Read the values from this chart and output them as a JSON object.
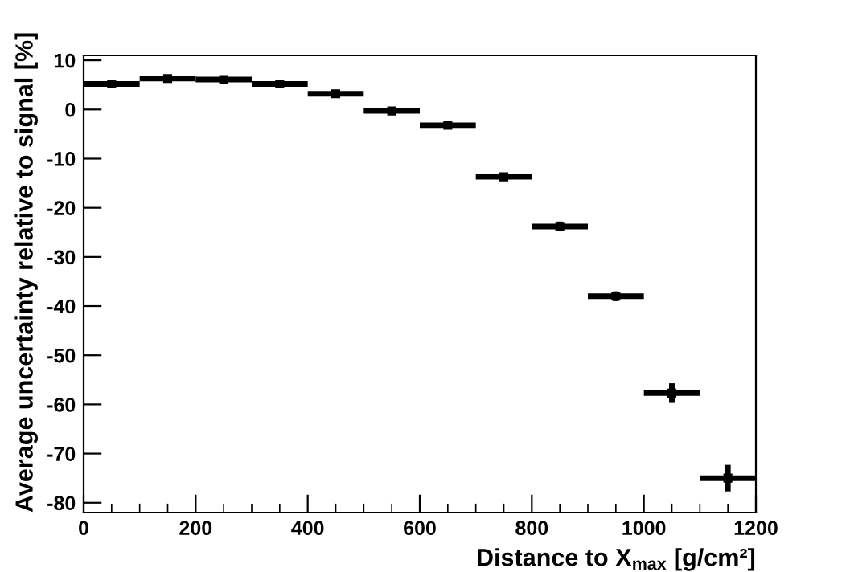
{
  "chart_data": {
    "type": "scatter",
    "xlabel": "Distance to X$_{max}$ [g/cm²]",
    "ylabel": "Average uncertainty relative to signal [%]",
    "x": [
      50,
      150,
      250,
      350,
      450,
      550,
      650,
      750,
      850,
      950,
      1050,
      1150
    ],
    "series": [
      {
        "color": "#000000",
        "values": [
          5.2,
          6.3,
          6.1,
          5.2,
          3.2,
          -0.3,
          -3.2,
          -13.7,
          -23.8,
          -38.0,
          -57.7,
          -75.0
        ],
        "xerrors": [
          50,
          50,
          50,
          50,
          50,
          50,
          50,
          50,
          50,
          50,
          50,
          50
        ],
        "errors": [
          null,
          null,
          null,
          null,
          null,
          null,
          null,
          0.4,
          1.0,
          1.0,
          2.0,
          2.7
        ]
      }
    ],
    "marker": "square",
    "xlim": [
      0,
      1200
    ],
    "ylim": [
      -82,
      11
    ],
    "xticks": [
      0,
      {
        "value": 50,
        "label": null
      },
      {
        "value": 100,
        "label": null
      },
      {
        "value": 150,
        "label": null
      },
      200,
      {
        "value": 250,
        "label": null
      },
      {
        "value": 300,
        "label": null
      },
      {
        "value": 350,
        "label": null
      },
      400,
      {
        "value": 450,
        "label": null
      },
      {
        "value": 500,
        "label": null
      },
      {
        "value": 550,
        "label": null
      },
      600,
      {
        "value": 650,
        "label": null
      },
      {
        "value": 700,
        "label": null
      },
      {
        "value": 750,
        "label": null
      },
      800,
      {
        "value": 850,
        "label": null
      },
      {
        "value": 900,
        "label": null
      },
      {
        "value": 950,
        "label": null
      },
      1000,
      {
        "value": 1050,
        "label": null
      },
      {
        "value": 1100,
        "label": null
      },
      {
        "value": 1150,
        "label": null
      },
      1200
    ],
    "yticks": [
      -80,
      -70,
      -60,
      -50,
      -40,
      -30,
      -20,
      -10,
      0,
      10
    ],
    "grid": false
  }
}
